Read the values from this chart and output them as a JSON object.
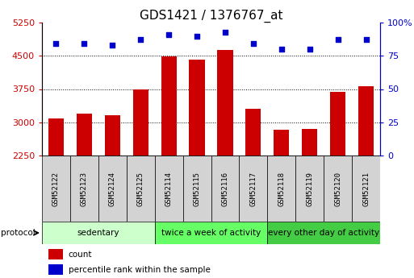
{
  "title": "GDS1421 / 1376767_at",
  "categories": [
    "GSM52122",
    "GSM52123",
    "GSM52124",
    "GSM52125",
    "GSM52114",
    "GSM52115",
    "GSM52116",
    "GSM52117",
    "GSM52118",
    "GSM52119",
    "GSM52120",
    "GSM52121"
  ],
  "bar_values": [
    3080,
    3200,
    3160,
    3750,
    4490,
    4420,
    4630,
    3310,
    2840,
    2850,
    3690,
    3820
  ],
  "percentile_values": [
    84,
    84,
    83,
    87,
    91,
    90,
    93,
    84,
    80,
    80,
    87,
    87
  ],
  "ylim_left": [
    2250,
    5250
  ],
  "ylim_right": [
    0,
    100
  ],
  "yticks_left": [
    2250,
    3000,
    3750,
    4500,
    5250
  ],
  "yticks_right": [
    0,
    25,
    50,
    75,
    100
  ],
  "bar_color": "#CC0000",
  "percentile_color": "#0000CC",
  "gridline_values": [
    3000,
    3750,
    4500
  ],
  "protocol_groups": [
    {
      "label": "sedentary",
      "start": 0,
      "end": 4,
      "color": "#ccffcc"
    },
    {
      "label": "twice a week of activity",
      "start": 4,
      "end": 8,
      "color": "#66ff66"
    },
    {
      "label": "every other day of activity",
      "start": 8,
      "end": 12,
      "color": "#44cc44"
    }
  ],
  "sample_cell_color": "#d3d3d3",
  "protocol_label": "protocol",
  "legend_count_label": "count",
  "legend_percentile_label": "percentile rank within the sample",
  "bg_color": "#ffffff",
  "title_fontsize": 11,
  "tick_fontsize": 8,
  "label_fontsize": 8,
  "gsm_fontsize": 6.5,
  "proto_fontsize": 7.5,
  "legend_fontsize": 7.5
}
